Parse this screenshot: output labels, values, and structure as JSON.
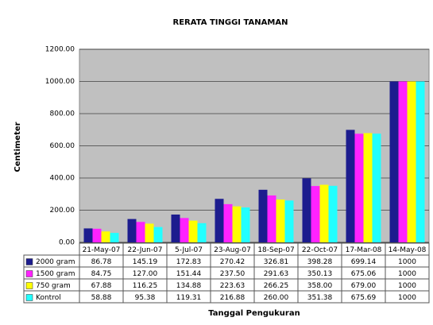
{
  "chart_data": {
    "type": "bar",
    "title": "RERATA TINGGI TANAMAN",
    "y_label": "Centimeter",
    "x_label": "Tanggal Pengukuran",
    "categories": [
      "21-May-07",
      "22-Jun-07",
      "5-Jul-07",
      "23-Aug-07",
      "18-Sep-07",
      "22-Oct-07",
      "17-Mar-08",
      "14-May-08"
    ],
    "series": [
      {
        "name": "2000 gram",
        "color": "#1c1c8e",
        "values": [
          86.78,
          145.19,
          172.83,
          270.42,
          326.81,
          398.28,
          699.14,
          1000
        ],
        "value_labels": [
          "86.78",
          "145.19",
          "172.83",
          "270.42",
          "326.81",
          "398.28",
          "699.14",
          "1000"
        ]
      },
      {
        "name": "1500 gram",
        "color": "#ff22ff",
        "values": [
          84.75,
          127,
          151.44,
          237.5,
          291.63,
          350.13,
          675.06,
          1000
        ],
        "value_labels": [
          "84.75",
          "127.00",
          "151.44",
          "237.50",
          "291.63",
          "350.13",
          "675.06",
          "1000"
        ]
      },
      {
        "name": "750 gram",
        "color": "#ffff00",
        "values": [
          67.88,
          116.25,
          134.88,
          223.63,
          266.25,
          358,
          679,
          1000
        ],
        "value_labels": [
          "67.88",
          "116.25",
          "134.88",
          "223.63",
          "266.25",
          "358.00",
          "679.00",
          "1000"
        ]
      },
      {
        "name": "Kontrol",
        "color": "#22ffff",
        "values": [
          58.88,
          95.38,
          119.31,
          216.88,
          260,
          351.38,
          675.69,
          1000
        ],
        "value_labels": [
          "58.88",
          "95.38",
          "119.31",
          "216.88",
          "260.00",
          "351.38",
          "675.69",
          "1000"
        ]
      }
    ],
    "ylim": [
      0,
      1200
    ],
    "yticks": [
      {
        "value": 0,
        "label": "0.00"
      },
      {
        "value": 200,
        "label": "200.00"
      },
      {
        "value": 400,
        "label": "400.00"
      },
      {
        "value": 600,
        "label": "600.00"
      },
      {
        "value": 800,
        "label": "800.00"
      },
      {
        "value": 1000,
        "label": "1000.00"
      },
      {
        "value": 1200,
        "label": "1200.00"
      }
    ],
    "grid": true
  }
}
